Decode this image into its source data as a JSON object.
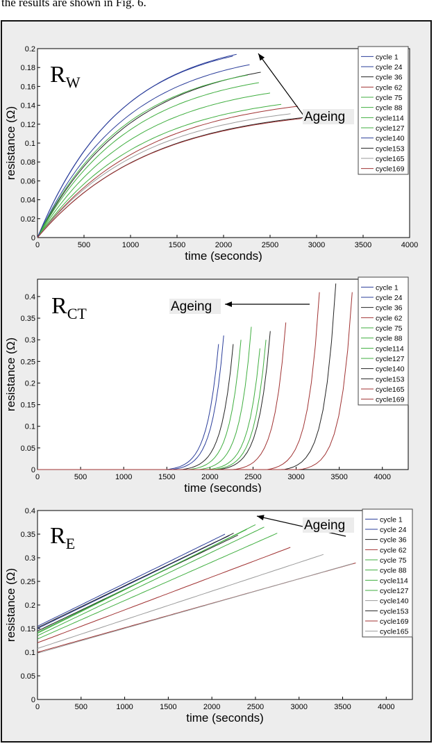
{
  "caption": "the results are shown in Fig. 6.",
  "colors": {
    "blue": "#2a3d9a",
    "green": "#3fae3f",
    "red": "#a03232",
    "dark": "#222222",
    "gray": "#9a9a9a"
  },
  "chart_data": [
    {
      "type": "line",
      "title_main": "R",
      "title_sub": "W",
      "xlabel": "time (seconds)",
      "ylabel": "resistance (Ω)",
      "xlim": [
        0,
        4000
      ],
      "ylim": [
        0,
        0.2
      ],
      "xticks": [
        "0",
        "500",
        "1000",
        "1500",
        "2000",
        "2500",
        "3000",
        "3500",
        "4000"
      ],
      "yticks": [
        "0",
        "0.02",
        "0.04",
        "0.06",
        "0.08",
        "0.1",
        "0.12",
        "0.14",
        "0.16",
        "0.18",
        "0.2"
      ],
      "annotation": "Ageing",
      "legend": [
        "cycle 1",
        "cycle 24",
        "cycle 36",
        "cycle 62",
        "cycle 75",
        "cycle 88",
        "cycle114",
        "cycle127",
        "cycle140",
        "cycle153",
        "cycle165",
        "cycle169"
      ],
      "series": [
        {
          "name": "cycle 1",
          "color": "#2a3d9a",
          "end_time": 2140,
          "end_value": 0.194
        },
        {
          "name": "cycle 24",
          "color": "#2a3d9a",
          "end_time": 2280,
          "end_value": 0.183
        },
        {
          "name": "cycle 36",
          "color": "#222222",
          "end_time": 2400,
          "end_value": 0.175
        },
        {
          "name": "cycle 62",
          "color": "#a03232",
          "end_time": 2800,
          "end_value": 0.139
        },
        {
          "name": "cycle 75",
          "color": "#3fae3f",
          "end_time": 2380,
          "end_value": 0.164
        },
        {
          "name": "cycle 88",
          "color": "#3fae3f",
          "end_time": 2500,
          "end_value": 0.153
        },
        {
          "name": "cycle114",
          "color": "#3fae3f",
          "end_time": 2620,
          "end_value": 0.141
        },
        {
          "name": "cycle127",
          "color": "#3fae3f",
          "end_time": 2260,
          "end_value": 0.172
        },
        {
          "name": "cycle140",
          "color": "#2a3d9a",
          "end_time": 2100,
          "end_value": 0.192
        },
        {
          "name": "cycle153",
          "color": "#222222",
          "end_time": 2860,
          "end_value": 0.127
        },
        {
          "name": "cycle165",
          "color": "#9a9a9a",
          "end_time": 2720,
          "end_value": 0.131
        },
        {
          "name": "cycle169",
          "color": "#a03232",
          "end_time": 2840,
          "end_value": 0.126
        }
      ]
    },
    {
      "type": "line",
      "title_main": "R",
      "title_sub": "CT",
      "xlabel": "time (seconds)",
      "ylabel": "resistance (Ω)",
      "xlim": [
        0,
        4300
      ],
      "ylim": [
        0,
        0.44
      ],
      "xticks": [
        "0",
        "500",
        "1000",
        "1500",
        "2000",
        "2500",
        "3000",
        "3500",
        "4000"
      ],
      "yticks": [
        "0",
        "0.05",
        "0.1",
        "0.15",
        "0.2",
        "0.25",
        "0.3",
        "0.35",
        "0.4"
      ],
      "annotation": "Ageing",
      "legend": [
        "cycle 1",
        "cycle 24",
        "cycle 36",
        "cycle 62",
        "cycle 75",
        "cycle 88",
        "cycle114",
        "cycle127",
        "cycle140",
        "cycle153",
        "cycle165",
        "cycle169"
      ],
      "series": [
        {
          "name": "cycle 1",
          "color": "#2a3d9a",
          "end_time": 2100,
          "end_value": 0.29
        },
        {
          "name": "cycle 24",
          "color": "#2a3d9a",
          "end_time": 2160,
          "end_value": 0.31
        },
        {
          "name": "cycle 36",
          "color": "#222222",
          "end_time": 2270,
          "end_value": 0.29
        },
        {
          "name": "cycle 62",
          "color": "#a03232",
          "end_time": 2880,
          "end_value": 0.34
        },
        {
          "name": "cycle 75",
          "color": "#3fae3f",
          "end_time": 2360,
          "end_value": 0.3
        },
        {
          "name": "cycle 88",
          "color": "#3fae3f",
          "end_time": 2480,
          "end_value": 0.33
        },
        {
          "name": "cycle114",
          "color": "#3fae3f",
          "end_time": 2580,
          "end_value": 0.28
        },
        {
          "name": "cycle127",
          "color": "#3fae3f",
          "end_time": 2650,
          "end_value": 0.3
        },
        {
          "name": "cycle140",
          "color": "#222222",
          "end_time": 2700,
          "end_value": 0.32
        },
        {
          "name": "cycle153",
          "color": "#222222",
          "end_time": 3460,
          "end_value": 0.43
        },
        {
          "name": "cycle165",
          "color": "#a03232",
          "end_time": 3270,
          "end_value": 0.41
        },
        {
          "name": "cycle169",
          "color": "#a03232",
          "end_time": 3650,
          "end_value": 0.41
        }
      ]
    },
    {
      "type": "line",
      "title_main": "R",
      "title_sub": "E",
      "xlabel": "time (seconds)",
      "ylabel": "resistance (Ω)",
      "xlim": [
        0,
        4300
      ],
      "ylim": [
        0,
        0.4
      ],
      "xticks": [
        "0",
        "500",
        "1000",
        "1500",
        "2000",
        "2500",
        "3000",
        "3500",
        "4000"
      ],
      "yticks": [
        "0",
        "0.05",
        "0.1",
        "0.15",
        "0.2",
        "0.25",
        "0.3",
        "0.35",
        "0.4"
      ],
      "annotation": "Ageing",
      "legend": [
        "cycle 1",
        "cycle 24",
        "cycle 36",
        "cycle 62",
        "cycle 75",
        "cycle 88",
        "cycle114",
        "cycle127",
        "cycle140",
        "cycle153",
        "cycle169",
        "cycle165"
      ],
      "series": [
        {
          "name": "cycle 1",
          "color": "#2a3d9a",
          "start_value": 0.155,
          "end_time": 2150,
          "end_value": 0.35
        },
        {
          "name": "cycle 24",
          "color": "#2a3d9a",
          "start_value": 0.15,
          "end_time": 2200,
          "end_value": 0.347
        },
        {
          "name": "cycle 36",
          "color": "#222222",
          "start_value": 0.145,
          "end_time": 2300,
          "end_value": 0.348
        },
        {
          "name": "cycle 62",
          "color": "#a03232",
          "start_value": 0.12,
          "end_time": 2900,
          "end_value": 0.322
        },
        {
          "name": "cycle 75",
          "color": "#3fae3f",
          "start_value": 0.14,
          "end_time": 2500,
          "end_value": 0.37
        },
        {
          "name": "cycle 88",
          "color": "#3fae3f",
          "start_value": 0.135,
          "end_time": 2600,
          "end_value": 0.365
        },
        {
          "name": "cycle114",
          "color": "#3fae3f",
          "start_value": 0.128,
          "end_time": 2750,
          "end_value": 0.352
        },
        {
          "name": "cycle127",
          "color": "#3fae3f",
          "start_value": 0.142,
          "end_time": 2400,
          "end_value": 0.36
        },
        {
          "name": "cycle140",
          "color": "#9a9a9a",
          "start_value": 0.108,
          "end_time": 3280,
          "end_value": 0.307
        },
        {
          "name": "cycle153",
          "color": "#222222",
          "start_value": 0.152,
          "end_time": 2250,
          "end_value": 0.352
        },
        {
          "name": "cycle169",
          "color": "#a03232",
          "start_value": 0.1,
          "end_time": 3650,
          "end_value": 0.289
        },
        {
          "name": "cycle165",
          "color": "#9a9a9a",
          "start_value": 0.098,
          "end_time": 3620,
          "end_value": 0.288
        }
      ]
    }
  ]
}
